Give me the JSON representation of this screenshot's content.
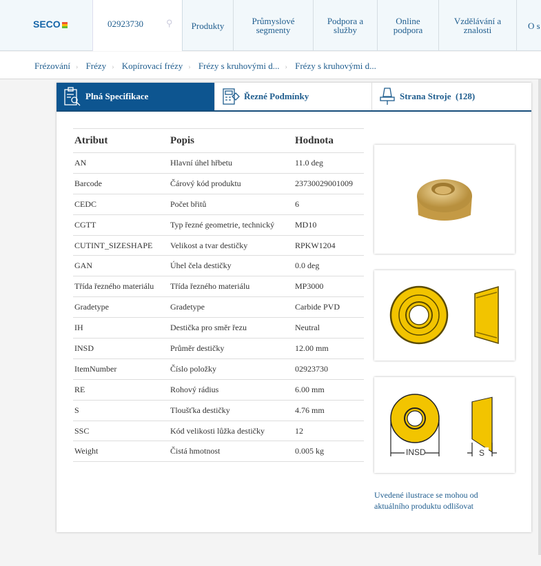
{
  "header": {
    "logo": "SECO",
    "search_value": "02923730",
    "nav": [
      "Produkty",
      "Průmyslové segmenty",
      "Podpora a služby",
      "Online podpora",
      "Vzdělávání a znalosti",
      "O s"
    ]
  },
  "breadcrumb": [
    "Frézování",
    "Frézy",
    "Kopírovací frézy",
    "Frézy s kruhovými d...",
    "Frézy s kruhovými d..."
  ],
  "tabs": [
    {
      "label": "Plná Specifikace",
      "icon": "clipboard-search-icon",
      "active": true
    },
    {
      "label": "Řezné Podmínky",
      "icon": "calculator-icon"
    },
    {
      "label": "Strana Stroje  (128)",
      "icon": "machine-spindle-icon"
    }
  ],
  "table": {
    "headers": [
      "Atribut",
      "Popis",
      "Hodnota"
    ],
    "rows": [
      [
        "AN",
        "Hlavní úhel hřbetu",
        "11.0 deg"
      ],
      [
        "Barcode",
        "Čárový kód produktu",
        "23730029001009"
      ],
      [
        "CEDC",
        "Počet břitů",
        "6"
      ],
      [
        "CGTT",
        "Typ řezné geometrie, technický",
        "MD10"
      ],
      [
        "CUTINT_SIZESHAPE",
        "Velikost a tvar destičky",
        "RPKW1204"
      ],
      [
        "GAN",
        "Úhel čela destičky",
        "0.0 deg"
      ],
      [
        "Třída řezného materiálu",
        "Třída řezného materiálu",
        "MP3000"
      ],
      [
        "Gradetype",
        "Gradetype",
        "Carbide PVD"
      ],
      [
        "IH",
        "Destička pro směr řezu",
        "Neutral"
      ],
      [
        "INSD",
        "Průměr destičky",
        "12.00 mm"
      ],
      [
        "ItemNumber",
        "Číslo položky",
        "02923730"
      ],
      [
        "RE",
        "Rohový rádius",
        "6.00 mm"
      ],
      [
        "S",
        "Tloušťka destičky",
        "4.76 mm"
      ],
      [
        "SSC",
        "Kód velikosti lůžka destičky",
        "12"
      ],
      [
        "Weight",
        "Čistá hmotnost",
        "0.005 kg"
      ]
    ]
  },
  "drawing_labels": {
    "insd": "INSD",
    "s": "S"
  },
  "note": "Uvedené ilustrace se mohou od aktuálního produktu odlišovat",
  "colors": {
    "brand": "#0d5590",
    "link": "#1f5d8e",
    "insert": "#f2c400"
  }
}
